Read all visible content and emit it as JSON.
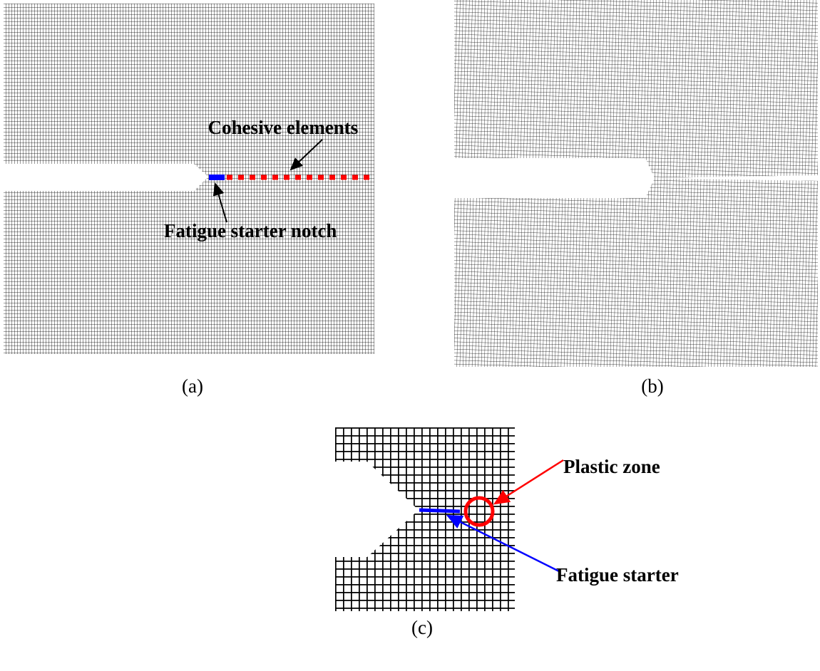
{
  "panels": [
    {
      "label": "(a)",
      "annotations": [
        "Cohesive elements",
        "Fatigue starter notch"
      ]
    },
    {
      "label": "(b)"
    },
    {
      "label": "(c)",
      "annotations": [
        "Plastic zone",
        "Fatigue starter"
      ]
    }
  ]
}
